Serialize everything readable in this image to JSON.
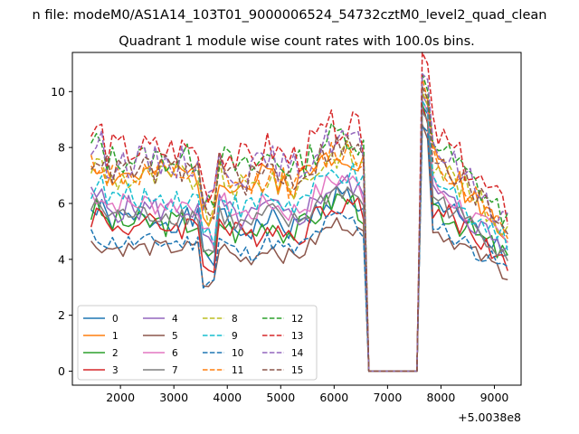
{
  "header": {
    "suptitle": "n file: modeM0/AS1A14_103T01_9000006524_54732cztM0_level2_quad_clean"
  },
  "chart_data": {
    "type": "line",
    "title": "Quadrant 1 module wise count rates with 100.0s bins.",
    "xlabel": "",
    "ylabel": "",
    "x_offset_label": "+5.0038e8",
    "xlim": [
      1100,
      9500
    ],
    "ylim": [
      -0.5,
      11.4
    ],
    "xticks": [
      2000,
      3000,
      4000,
      5000,
      6000,
      7000,
      8000,
      9000
    ],
    "yticks": [
      0,
      2,
      4,
      6,
      8,
      10
    ],
    "grid": false,
    "legend_position": "lower-left",
    "legend_columns": 4,
    "x_start": 1450,
    "x_step": 100,
    "x_end": 9250,
    "gap_start": 6650,
    "gap_end": 7550,
    "series": [
      {
        "name": "0",
        "color": "#1f77b4",
        "dash": "solid",
        "base": 5.1,
        "amp": 0.45,
        "peak": 9.2,
        "seed": 1
      },
      {
        "name": "1",
        "color": "#ff7f0e",
        "dash": "solid",
        "base": 6.7,
        "amp": 0.55,
        "peak": 9.6,
        "seed": 2
      },
      {
        "name": "2",
        "color": "#2ca02c",
        "dash": "solid",
        "base": 5.0,
        "amp": 0.5,
        "peak": 9.0,
        "seed": 3
      },
      {
        "name": "3",
        "color": "#d62728",
        "dash": "solid",
        "base": 4.9,
        "amp": 0.5,
        "peak": 8.9,
        "seed": 4
      },
      {
        "name": "4",
        "color": "#9467bd",
        "dash": "solid",
        "base": 5.5,
        "amp": 0.5,
        "peak": 9.4,
        "seed": 5
      },
      {
        "name": "5",
        "color": "#8c564b",
        "dash": "solid",
        "base": 4.1,
        "amp": 0.3,
        "peak": 8.4,
        "seed": 6
      },
      {
        "name": "6",
        "color": "#e377c2",
        "dash": "solid",
        "base": 5.7,
        "amp": 0.45,
        "peak": 9.3,
        "seed": 7
      },
      {
        "name": "7",
        "color": "#7f7f7f",
        "dash": "solid",
        "base": 5.3,
        "amp": 0.4,
        "peak": 8.9,
        "seed": 8
      },
      {
        "name": "8",
        "color": "#bcbd22",
        "dash": "dashed",
        "base": 6.6,
        "amp": 0.55,
        "peak": 9.7,
        "seed": 9
      },
      {
        "name": "9",
        "color": "#17becf",
        "dash": "dashed",
        "base": 5.9,
        "amp": 0.5,
        "peak": 9.4,
        "seed": 10
      },
      {
        "name": "10",
        "color": "#1f77b4",
        "dash": "dashed",
        "base": 4.3,
        "amp": 0.35,
        "peak": 8.5,
        "seed": 11
      },
      {
        "name": "11",
        "color": "#ff7f0e",
        "dash": "dashed",
        "base": 6.7,
        "amp": 0.55,
        "peak": 9.9,
        "seed": 12
      },
      {
        "name": "12",
        "color": "#2ca02c",
        "dash": "dashed",
        "base": 7.3,
        "amp": 0.55,
        "peak": 10.1,
        "seed": 13
      },
      {
        "name": "13",
        "color": "#d62728",
        "dash": "dashed",
        "base": 7.6,
        "amp": 0.65,
        "peak": 10.9,
        "seed": 14
      },
      {
        "name": "14",
        "color": "#9467bd",
        "dash": "dashed",
        "base": 7.2,
        "amp": 0.6,
        "peak": 10.2,
        "seed": 15
      },
      {
        "name": "15",
        "color": "#8c564b",
        "dash": "dashed",
        "base": 6.9,
        "amp": 0.55,
        "peak": 9.8,
        "seed": 16
      }
    ]
  }
}
